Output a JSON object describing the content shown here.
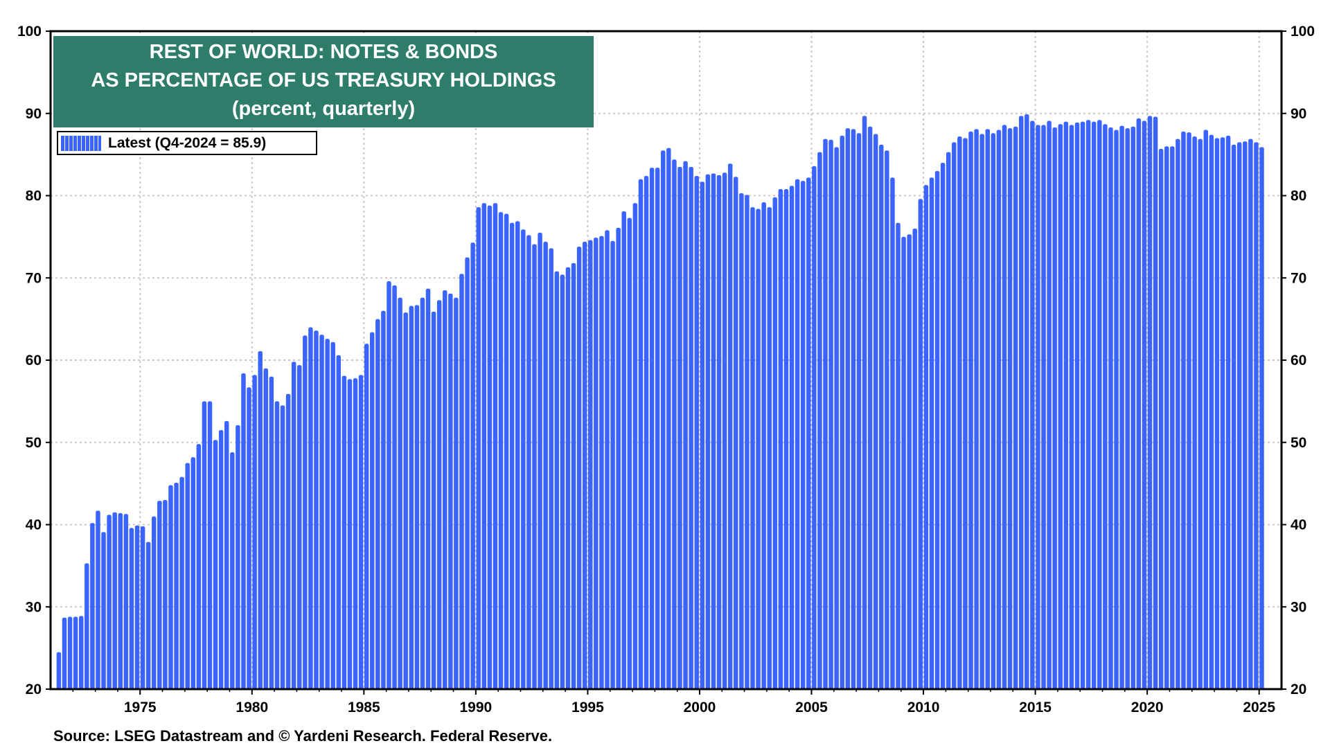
{
  "title": {
    "line1": "REST OF WORLD: NOTES & BONDS",
    "line2": "AS PERCENTAGE OF US TREASURY HOLDINGS",
    "line3": "(percent, quarterly)"
  },
  "legend": {
    "label": "Latest (Q4-2024 = 85.9)"
  },
  "source": "Source: LSEG Datastream and © Yardeni Research. Federal Reserve.",
  "colors": {
    "bar": "#3a64ff",
    "title_bg": "#2e7d6b",
    "grid": "#c8c8c8"
  },
  "chart_data": {
    "type": "bar",
    "frequency": "quarterly",
    "start": "1971-Q2",
    "end": "2024-Q4",
    "ylim": [
      20,
      100
    ],
    "yticks": [
      20,
      30,
      40,
      50,
      60,
      70,
      80,
      90,
      100
    ],
    "xticks": [
      1975,
      1980,
      1985,
      1990,
      1995,
      2000,
      2005,
      2010,
      2015,
      2020,
      2025
    ],
    "grid": true,
    "legend_position": "top-left",
    "series": [
      {
        "name": "Latest (Q4-2024 = 85.9)",
        "values": [
          24.5,
          28.7,
          28.8,
          28.8,
          28.9,
          35.3,
          40.2,
          41.7,
          39.1,
          41.2,
          41.5,
          41.4,
          41.3,
          39.6,
          39.9,
          39.8,
          37.9,
          41.0,
          42.9,
          43.0,
          44.8,
          45.1,
          45.8,
          47.5,
          48.2,
          49.8,
          55.0,
          55.0,
          50.3,
          51.5,
          52.6,
          48.8,
          52.1,
          58.4,
          56.7,
          58.2,
          61.1,
          59.0,
          58.0,
          55.0,
          54.5,
          55.9,
          59.8,
          59.4,
          63.0,
          64.0,
          63.6,
          63.1,
          62.6,
          62.2,
          60.6,
          58.1,
          57.7,
          57.8,
          58.2,
          62.0,
          63.4,
          65.0,
          66.0,
          69.6,
          69.1,
          67.6,
          65.8,
          66.6,
          66.7,
          67.6,
          68.7,
          65.9,
          67.3,
          68.5,
          68.1,
          67.6,
          70.5,
          72.5,
          74.3,
          78.6,
          79.1,
          78.8,
          79.1,
          78.0,
          77.8,
          76.7,
          76.9,
          75.9,
          75.2,
          74.1,
          75.5,
          74.4,
          73.6,
          70.8,
          70.4,
          71.3,
          71.8,
          73.8,
          74.4,
          74.6,
          74.9,
          75.1,
          75.8,
          74.5,
          76.1,
          78.1,
          77.3,
          79.1,
          82.0,
          82.4,
          83.4,
          83.4,
          85.5,
          85.8,
          84.4,
          83.5,
          84.2,
          83.5,
          82.4,
          81.7,
          82.6,
          82.7,
          82.5,
          82.8,
          83.9,
          82.3,
          80.3,
          80.1,
          78.6,
          78.4,
          79.2,
          78.6,
          79.8,
          80.8,
          80.8,
          81.2,
          82.0,
          81.8,
          82.2,
          83.6,
          85.3,
          86.9,
          86.8,
          85.9,
          87.3,
          88.2,
          88.1,
          87.6,
          89.7,
          88.4,
          87.5,
          86.2,
          85.5,
          82.2,
          76.7,
          75.0,
          75.3,
          76.0,
          79.6,
          81.3,
          82.2,
          83.0,
          84.0,
          85.3,
          86.5,
          87.2,
          87.0,
          87.8,
          88.1,
          87.5,
          88.1,
          87.6,
          88.0,
          88.6,
          88.2,
          88.4,
          89.7,
          89.9,
          89.1,
          88.6,
          88.6,
          89.1,
          88.3,
          88.7,
          89.0,
          88.6,
          88.9,
          89.0,
          89.2,
          89.0,
          89.2,
          88.7,
          88.3,
          88.0,
          88.5,
          88.2,
          88.4,
          89.4,
          89.1,
          89.7,
          89.6,
          85.7,
          86.0,
          86.0,
          86.9,
          87.8,
          87.7,
          87.2,
          86.9,
          88.0,
          87.4,
          87.0,
          87.1,
          87.3,
          86.2,
          86.5,
          86.6,
          86.9,
          86.5,
          85.9
        ]
      }
    ]
  }
}
